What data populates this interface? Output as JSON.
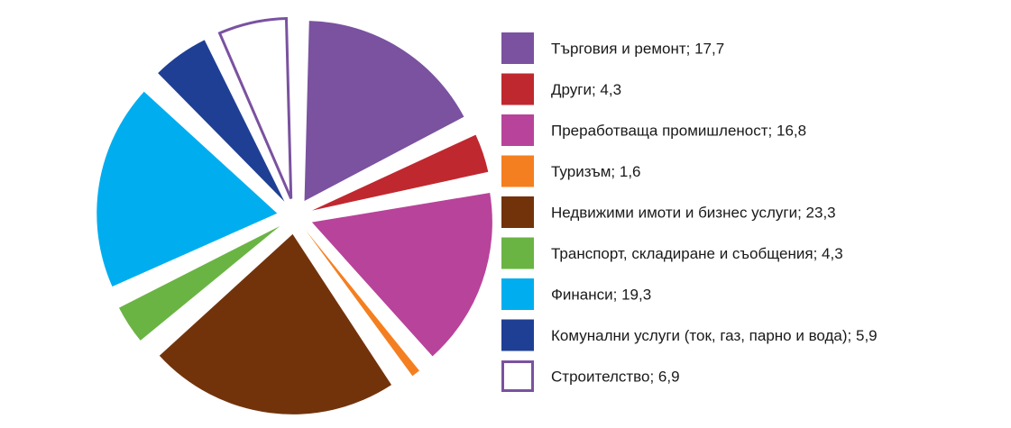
{
  "chart_data": {
    "type": "pie",
    "title": "",
    "categories": [
      "Търговия и ремонт",
      "Други",
      "Преработваща промишленост",
      "Туризъм",
      "Недвижими имоти и бизнес услуги",
      "Транспорт, складиране и съобщения",
      "Финанси",
      "Комунални услуги (ток, газ, парно и вода)",
      "Строителство"
    ],
    "values": [
      17.7,
      4.3,
      16.8,
      1.6,
      23.3,
      4.3,
      19.3,
      5.9,
      6.9
    ],
    "value_labels": [
      "17,7",
      "4,3",
      "16,8",
      "1,6",
      "23,3",
      "4,3",
      "19,3",
      "5,9",
      "6,9"
    ],
    "colors": [
      "#7a52a0",
      "#c0282f",
      "#b8439a",
      "#f47f20",
      "#72330b",
      "#6ab443",
      "#00aeef",
      "#1f3f95",
      "#ffffff"
    ],
    "outline_colors": [
      "none",
      "none",
      "none",
      "none",
      "none",
      "none",
      "none",
      "none",
      "#7a52a0"
    ],
    "legend_position": "right",
    "slices_exploded": true
  }
}
